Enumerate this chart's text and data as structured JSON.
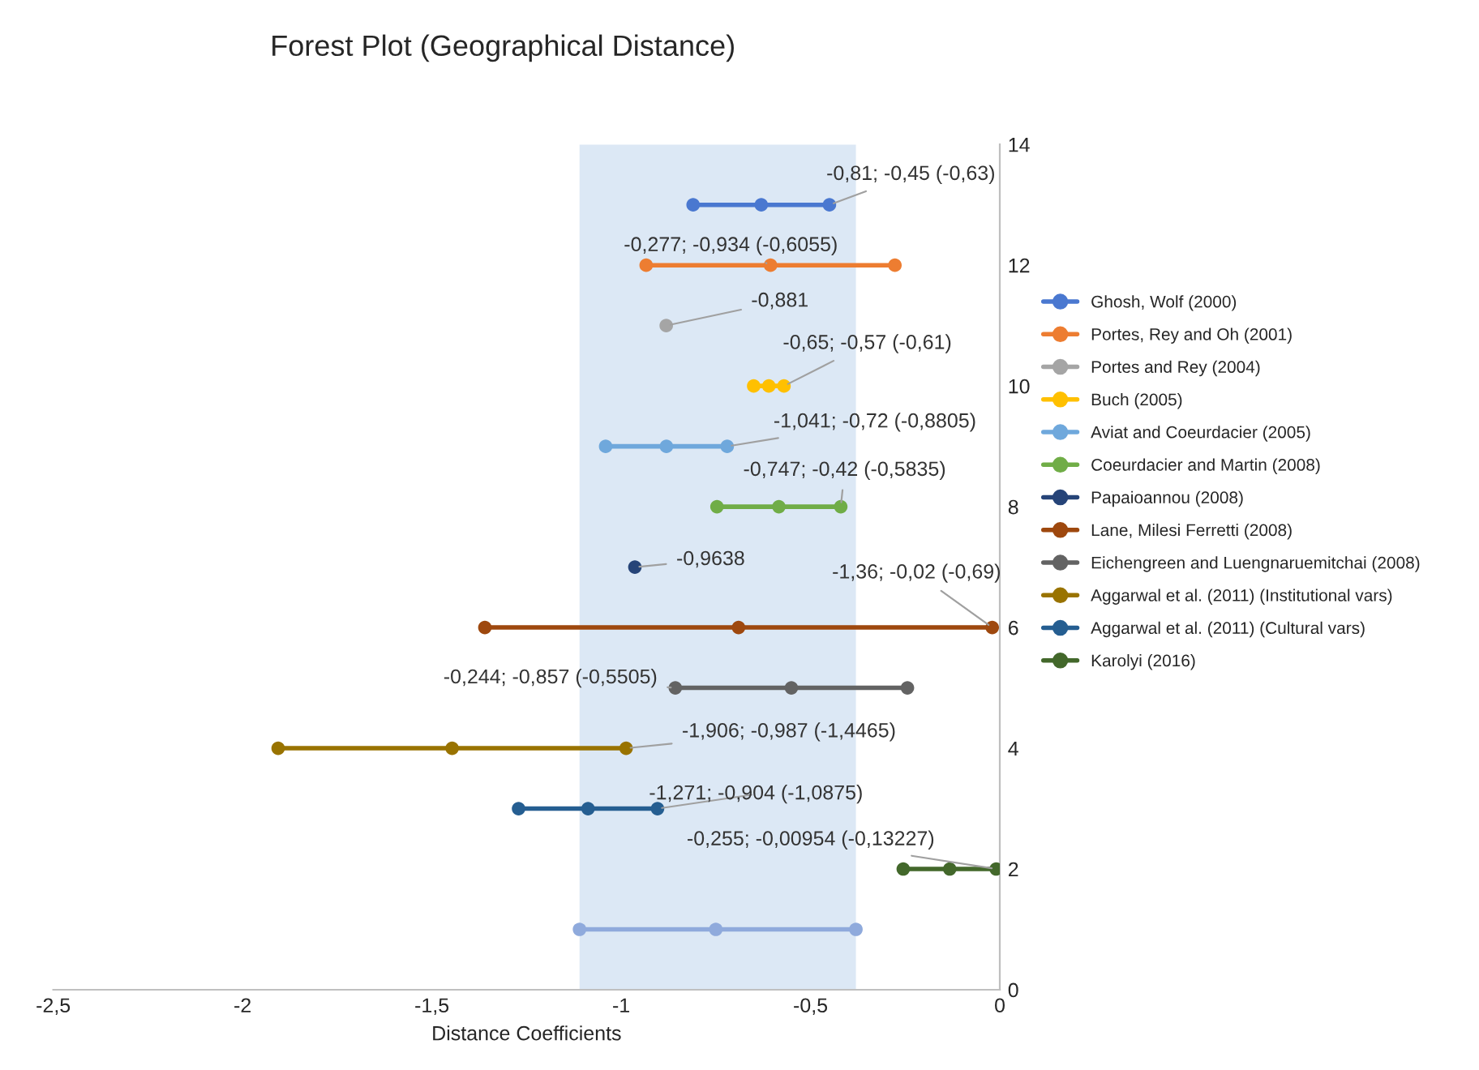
{
  "chart_data": {
    "type": "line",
    "title": "Forest Plot (Geographical Distance)",
    "xlabel": "Distance Coefficients",
    "marker": "circle",
    "line_style": "solid",
    "grid": false,
    "legend": "right",
    "xlim": [
      -2.5,
      0
    ],
    "xticks": [
      {
        "value": -2.5,
        "label": "-2,5"
      },
      {
        "value": -2,
        "label": "-2"
      },
      {
        "value": -1.5,
        "label": "-1,5"
      },
      {
        "value": -1,
        "label": "-1"
      },
      {
        "value": -0.5,
        "label": "-0,5"
      },
      {
        "value": 0,
        "label": "0"
      }
    ],
    "ylim": [
      0,
      14
    ],
    "yticks": [
      0,
      2,
      4,
      6,
      8,
      10,
      12,
      14
    ],
    "bands": [
      {
        "axis": "x",
        "from": -1.11,
        "to": -0.38,
        "color": "#dce8f5"
      }
    ],
    "series": [
      {
        "name": "Ghosh, Wolf (2000)",
        "color": "#4a78d0",
        "x": [
          -0.81,
          -0.63,
          -0.45
        ],
        "values": [
          13,
          13,
          13
        ]
      },
      {
        "name": "Portes, Rey and Oh (2001)",
        "color": "#ed7d31",
        "x": [
          -0.934,
          -0.6055,
          -0.277
        ],
        "values": [
          12,
          12,
          12
        ]
      },
      {
        "name": "Portes and Rey (2004)",
        "color": "#a5a5a5",
        "x": [
          -0.881
        ],
        "values": [
          11
        ]
      },
      {
        "name": "Buch (2005)",
        "color": "#ffc000",
        "x": [
          -0.65,
          -0.61,
          -0.57
        ],
        "values": [
          10,
          10,
          10
        ]
      },
      {
        "name": "Aviat and Coeurdacier (2005)",
        "color": "#6fa8dc",
        "x": [
          -1.041,
          -0.8805,
          -0.72
        ],
        "values": [
          9,
          9,
          9
        ]
      },
      {
        "name": "Coeurdacier and Martin (2008)",
        "color": "#70ad47",
        "x": [
          -0.747,
          -0.5835,
          -0.42
        ],
        "values": [
          8,
          8,
          8
        ]
      },
      {
        "name": "Papaioannou (2008)",
        "color": "#264478",
        "x": [
          -0.9638
        ],
        "values": [
          7
        ]
      },
      {
        "name": "Lane, Milesi Ferretti (2008)",
        "color": "#9e480e",
        "x": [
          -1.36,
          -0.69,
          -0.02
        ],
        "values": [
          6,
          6,
          6
        ]
      },
      {
        "name": "Eichengreen and Luengnaruemitchai (2008)",
        "color": "#636363",
        "x": [
          -0.857,
          -0.5505,
          -0.244
        ],
        "values": [
          5,
          5,
          5
        ]
      },
      {
        "name": "Aggarwal et al. (2011) (Institutional vars)",
        "color": "#997300",
        "x": [
          -1.906,
          -1.4465,
          -0.987
        ],
        "values": [
          4,
          4,
          4
        ]
      },
      {
        "name": "Aggarwal et al. (2011) (Cultural vars)",
        "color": "#255e91",
        "x": [
          -1.271,
          -1.0875,
          -0.904
        ],
        "values": [
          3,
          3,
          3
        ]
      },
      {
        "name": "Karolyi (2016)",
        "color": "#43682b",
        "x": [
          -0.255,
          -0.13227,
          -0.00954
        ],
        "values": [
          2,
          2,
          2
        ]
      },
      {
        "color": "#8faadc",
        "x": [
          -1.11,
          -0.75,
          -0.38
        ],
        "values": [
          1,
          1,
          1
        ]
      }
    ],
    "annotations": [
      {
        "text": "-0,81; -0,45 (-0,63)",
        "x": -0.45,
        "y": 13
      },
      {
        "text": "-0,277; -0,934 (-0,6055)",
        "x": -0.6055,
        "y": 12
      },
      {
        "text": "-0,881",
        "x": -0.881,
        "y": 11
      },
      {
        "text": "-0,65; -0,57 (-0,61)",
        "x": -0.57,
        "y": 10
      },
      {
        "text": "-1,041; -0,72 (-0,8805)",
        "x": -0.72,
        "y": 9
      },
      {
        "text": "-0,747; -0,42 (-0,5835)",
        "x": -0.42,
        "y": 8
      },
      {
        "text": "-0,9638",
        "x": -0.9638,
        "y": 7
      },
      {
        "text": "-1,36; -0,02 (-0,69)",
        "x": -0.02,
        "y": 6
      },
      {
        "text": "-0,244; -0,857 (-0,5505)",
        "x": -0.857,
        "y": 5
      },
      {
        "text": "-1,906; -0,987 (-1,4465)",
        "x": -0.987,
        "y": 4
      },
      {
        "text": "-1,271; -0,904 (-1,0875)",
        "x": -0.904,
        "y": 3
      },
      {
        "text": "-0,255; -0,00954 (-0,13227)",
        "x": -0.00954,
        "y": 2
      }
    ]
  }
}
